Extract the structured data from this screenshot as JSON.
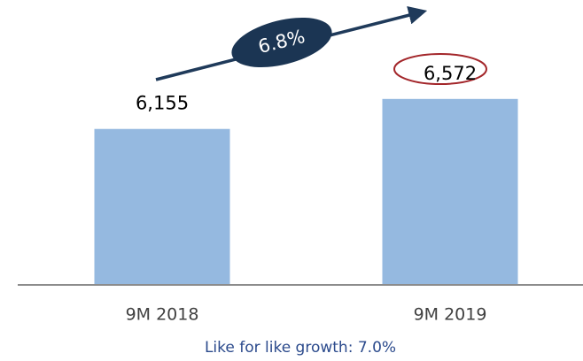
{
  "chart_data": {
    "type": "bar",
    "categories": [
      "9M 2018",
      "9M 2019"
    ],
    "values": [
      6155,
      6572
    ],
    "value_labels": [
      "6,155",
      "6,572"
    ],
    "color": "#95b9e0",
    "ylim": [
      4000,
      7000
    ],
    "annotation": "6.8%",
    "footnote": "Like for like growth: 7.0%"
  }
}
